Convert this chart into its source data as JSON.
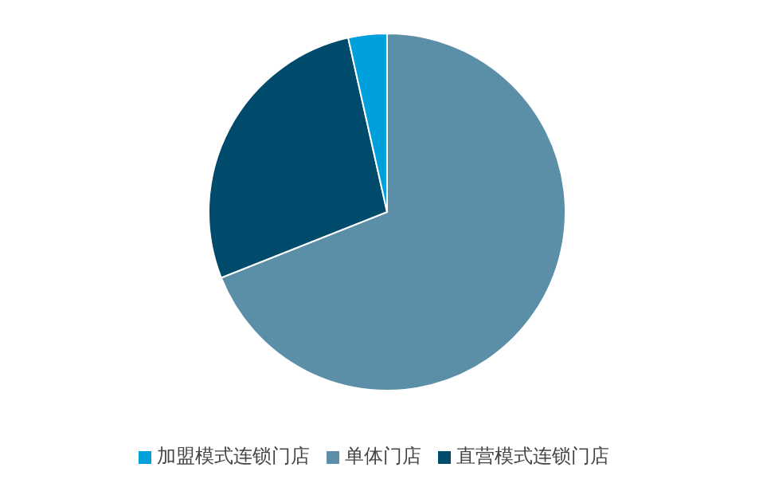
{
  "chart_data": {
    "type": "pie",
    "categories": [
      "单体门店",
      "直营模式连锁门店",
      "加盟模式连锁门店"
    ],
    "values": [
      69,
      27.5,
      3.5
    ],
    "colors": [
      "#5b8fa8",
      "#004a6b",
      "#00a0dc"
    ],
    "legend": "bottom"
  }
}
